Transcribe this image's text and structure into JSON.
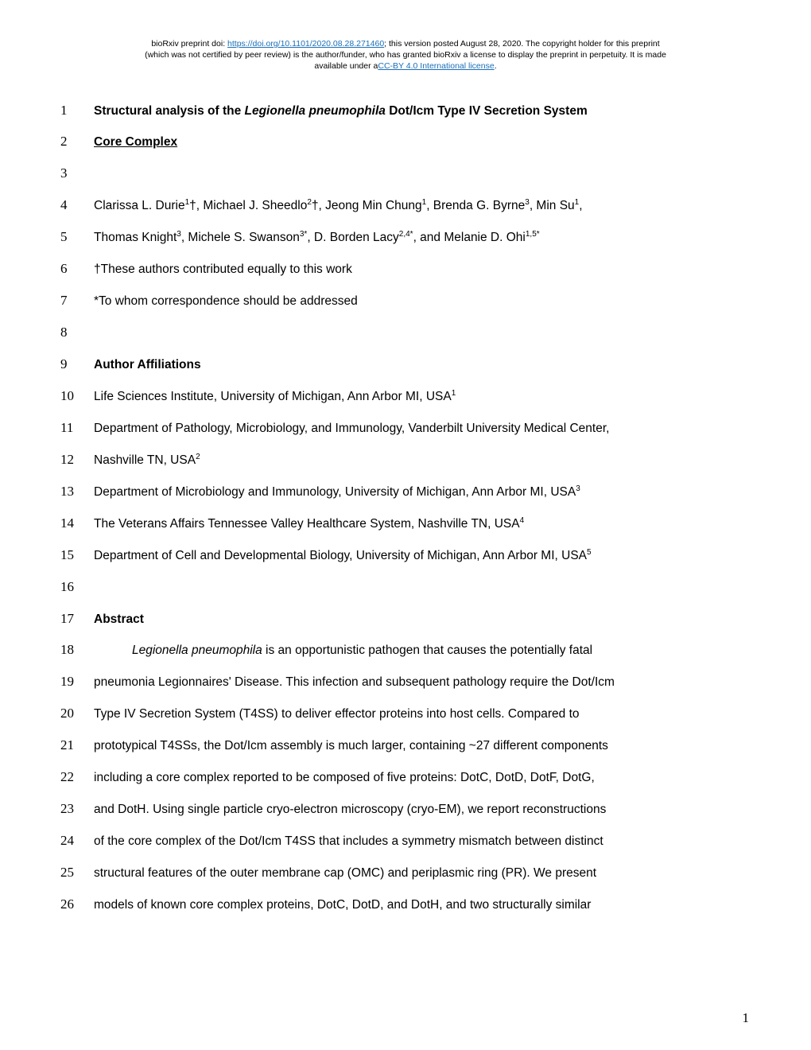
{
  "preprint_header": {
    "line1_pre": "bioRxiv preprint doi: ",
    "doi_url": "https://doi.org/10.1101/2020.08.28.271460",
    "line1_post": "; this version posted August 28, 2020. The copyright holder for this preprint",
    "line2": "(which was not certified by peer review) is the author/funder, who has granted bioRxiv a license to display the preprint in perpetuity. It is made",
    "line3_pre": "available under a",
    "license_text": "CC-BY 4.0 International license",
    "line3_post": "."
  },
  "lines": {
    "l1_a": "Structural analysis of the ",
    "l1_b": "Legionella pneumophila",
    "l1_c": " Dot/Icm Type IV Secretion System",
    "l2": "Core Complex",
    "l4_a": "Clarissa L. Durie",
    "l4_b": "†, Michael J. Sheedlo",
    "l4_c": "†, Jeong Min Chung",
    "l4_d": ", Brenda G. Byrne",
    "l4_e": ", Min Su",
    "l4_f": ",",
    "l5_a": "Thomas Knight",
    "l5_b": ", Michele S. Swanson",
    "l5_c": ", D. Borden Lacy",
    "l5_d": ", and Melanie D. Ohi",
    "l6": "†These authors contributed equally to this work",
    "l7": "*To whom correspondence should be addressed",
    "l9": "Author Affiliations",
    "l10": "Life Sciences Institute, University of Michigan, Ann Arbor MI, USA",
    "l11": "Department of Pathology, Microbiology, and Immunology, Vanderbilt University Medical Center,",
    "l12": "Nashville TN, USA",
    "l13": "Department of Microbiology and Immunology, University of Michigan, Ann Arbor MI, USA",
    "l14": "The Veterans Affairs Tennessee Valley Healthcare System, Nashville TN, USA",
    "l15": "Department of Cell and Developmental Biology, University of Michigan, Ann Arbor MI, USA",
    "l17": "Abstract",
    "l18_a": "Legionella pneumophila",
    "l18_b": " is an opportunistic pathogen that causes the potentially fatal",
    "l19": "pneumonia Legionnaires' Disease. This infection and subsequent pathology require the Dot/Icm",
    "l20": "Type IV Secretion System (T4SS) to deliver effector proteins into host cells. Compared to",
    "l21": "prototypical T4SSs, the Dot/Icm assembly is much larger, containing ~27 different components",
    "l22": "including a core complex reported to be composed of five proteins: DotC, DotD, DotF, DotG,",
    "l23": "and DotH. Using single particle cryo-electron microscopy (cryo-EM), we report reconstructions",
    "l24": "of the core complex of the Dot/Icm T4SS that includes a symmetry mismatch between distinct",
    "l25": "structural features of the outer membrane cap (OMC) and periplasmic ring (PR). We present",
    "l26": "models of known core complex proteins, DotC, DotD, and DotH, and two structurally similar"
  },
  "sup": {
    "s1": "1",
    "s2": "2",
    "s3": "3",
    "s4": "4",
    "s5": "5",
    "s3star": "3*",
    "s24star": "2,4*",
    "s15star": "1,5*"
  },
  "line_numbers": {
    "n1": "1",
    "n2": "2",
    "n3": "3",
    "n4": "4",
    "n5": "5",
    "n6": "6",
    "n7": "7",
    "n8": "8",
    "n9": "9",
    "n10": "10",
    "n11": "11",
    "n12": "12",
    "n13": "13",
    "n14": "14",
    "n15": "15",
    "n16": "16",
    "n17": "17",
    "n18": "18",
    "n19": "19",
    "n20": "20",
    "n21": "21",
    "n22": "22",
    "n23": "23",
    "n24": "24",
    "n25": "25",
    "n26": "26"
  },
  "page_number": "1"
}
